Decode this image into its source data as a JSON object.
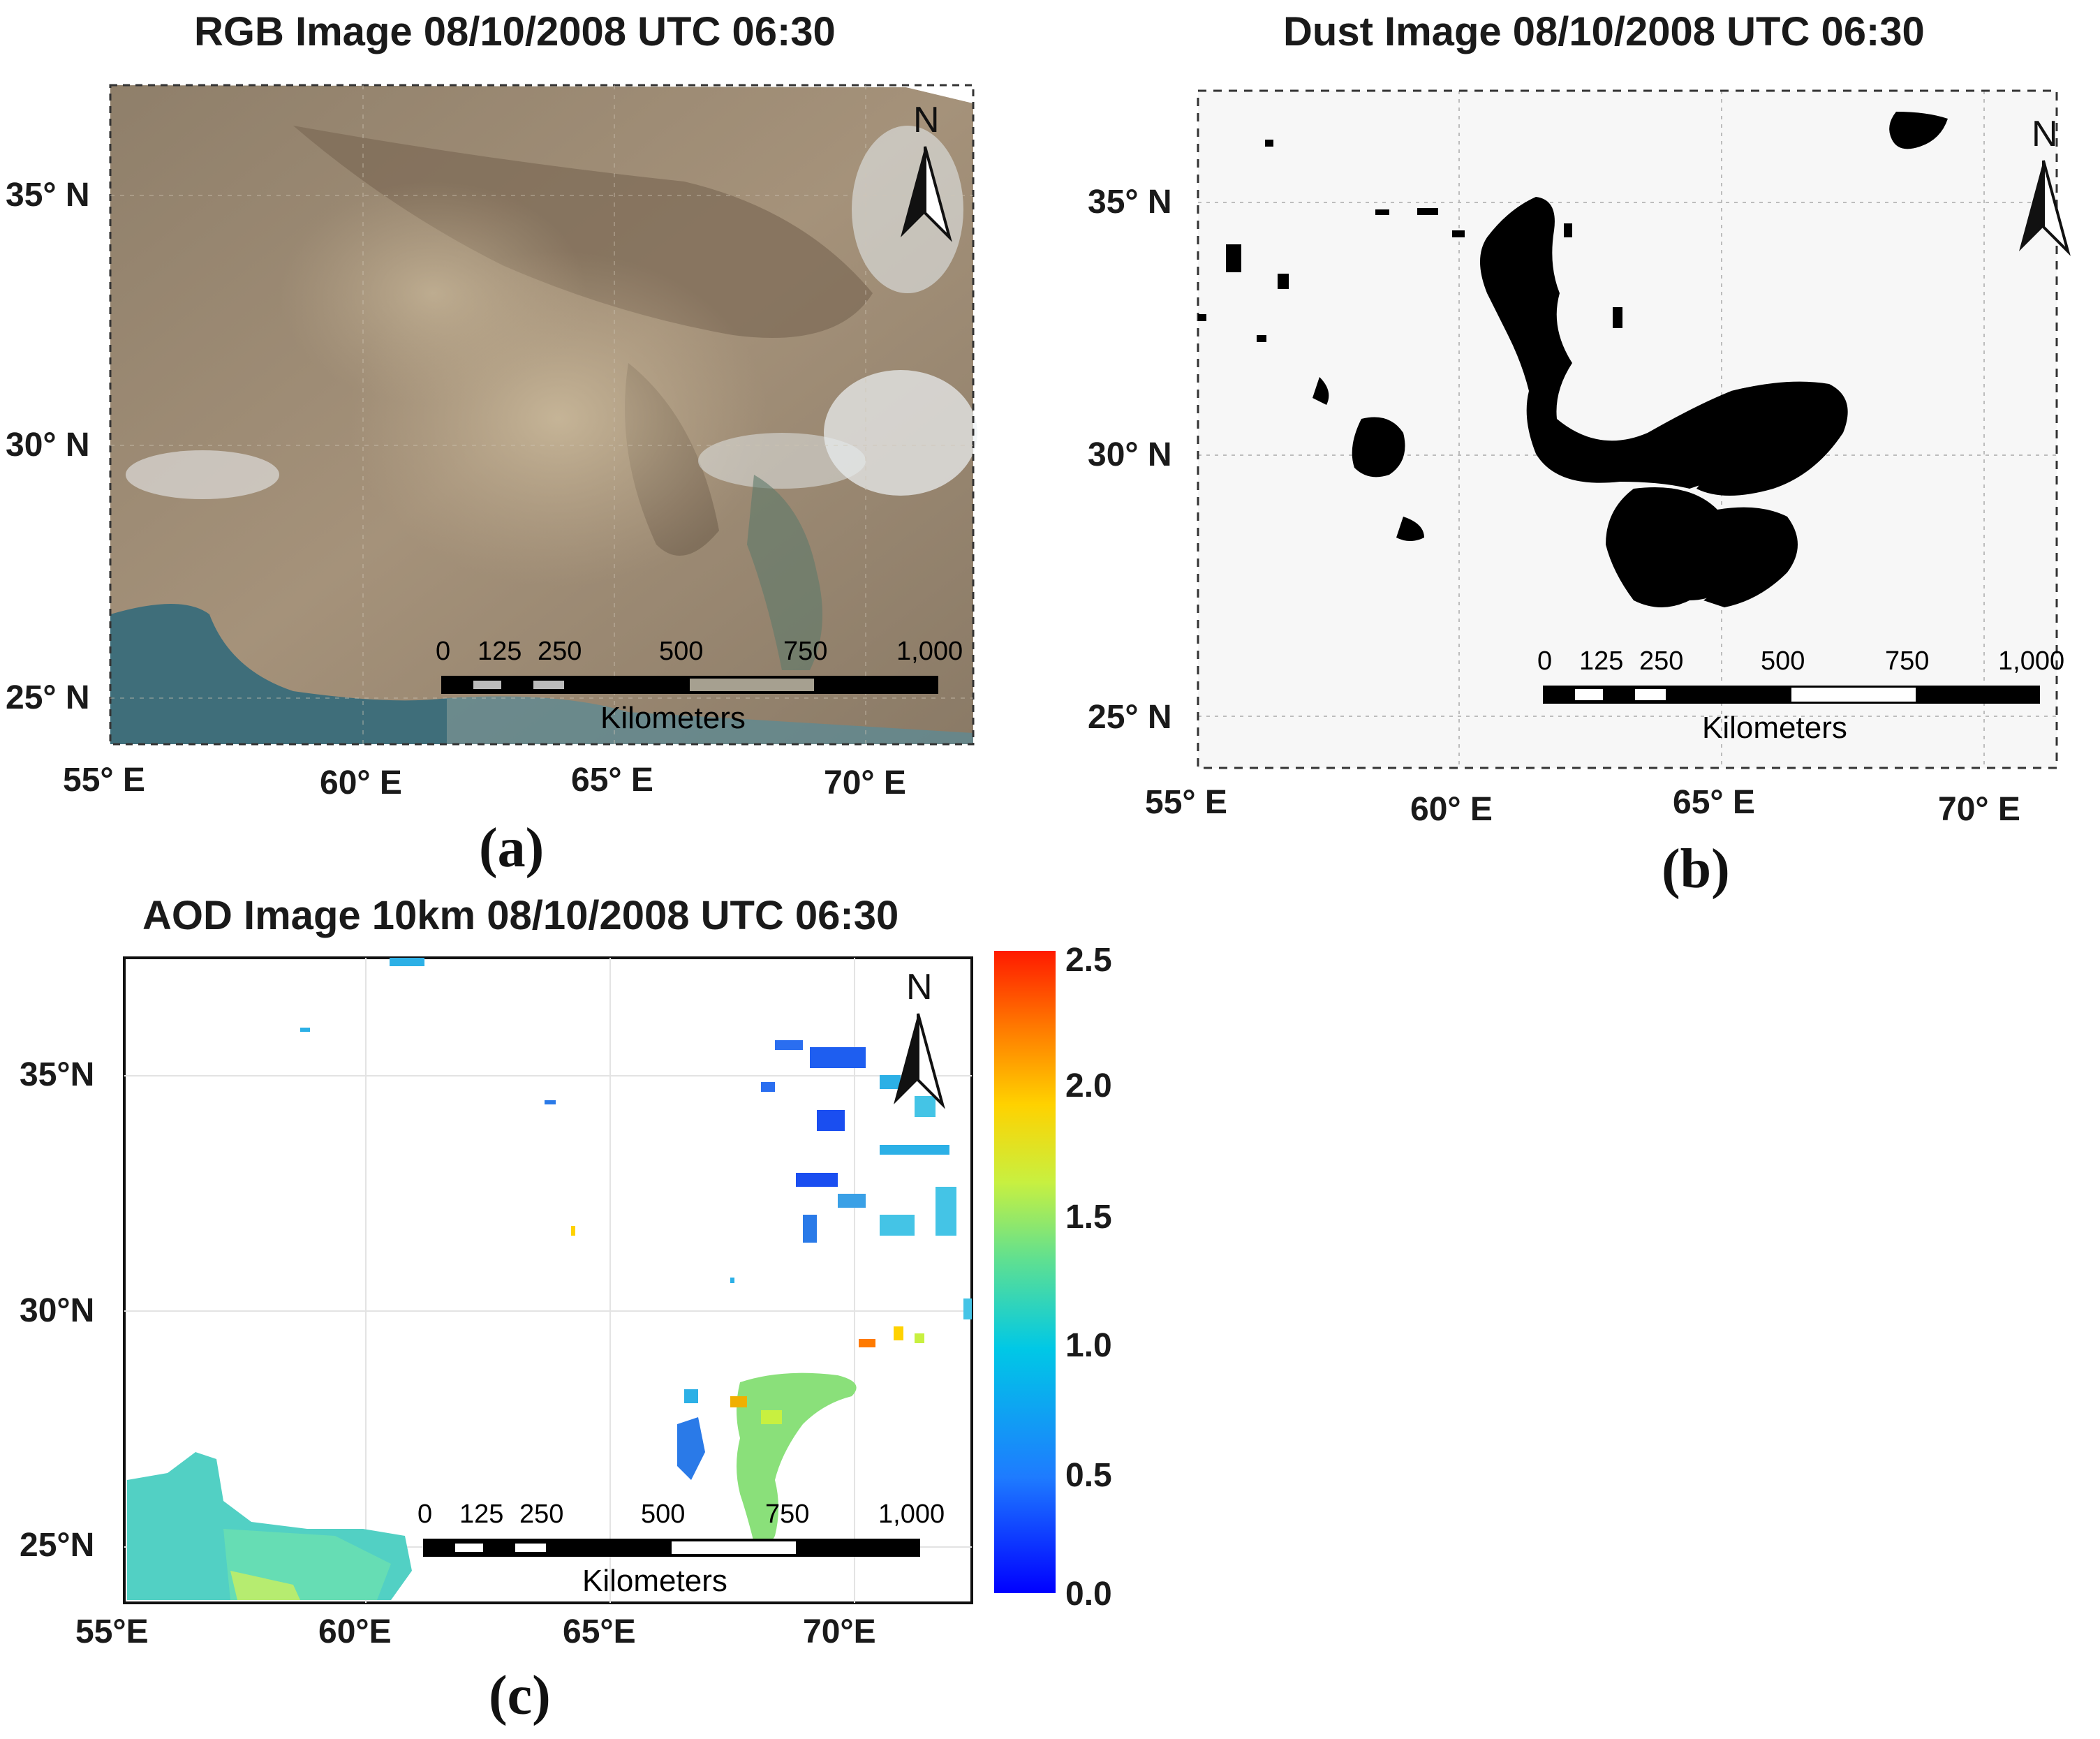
{
  "panels": {
    "a": {
      "title": "RGB Image 08/10/2008 UTC 06:30",
      "label": "(a)",
      "lat_ticks": [
        "35° N",
        "30° N",
        "25° N"
      ],
      "lon_ticks": [
        "55° E",
        "60° E",
        "65° E",
        "70° E"
      ],
      "north": "N",
      "scale_ticks": [
        "0",
        "125",
        "250",
        "500",
        "750",
        "1,000"
      ],
      "scale_unit": "Kilometers"
    },
    "b": {
      "title": "Dust Image 08/10/2008 UTC 06:30",
      "label": "(b)",
      "lat_ticks": [
        "35° N",
        "30° N",
        "25° N"
      ],
      "lon_ticks": [
        "55° E",
        "60° E",
        "65° E",
        "70° E"
      ],
      "north": "N",
      "scale_ticks": [
        "0",
        "125",
        "250",
        "500",
        "750",
        "1,000"
      ],
      "scale_unit": "Kilometers"
    },
    "c": {
      "title": "AOD Image 10km 08/10/2008 UTC 06:30",
      "label": "(c)",
      "lat_ticks": [
        "35°N",
        "30°N",
        "25°N"
      ],
      "lon_ticks": [
        "55°E",
        "60°E",
        "65°E",
        "70°E"
      ],
      "north": "N",
      "scale_ticks": [
        "0",
        "125",
        "250",
        "500",
        "750",
        "1,000"
      ],
      "scale_unit": "Kilometers",
      "colorbar": {
        "ticks": [
          "2.5",
          "2.0",
          "1.5",
          "1.0",
          "0.5",
          "0.0"
        ],
        "range": [
          0.0,
          2.5
        ],
        "colors": [
          "#0000ff",
          "#1e7bff",
          "#00c8e6",
          "#60e090",
          "#c8f040",
          "#ffd200",
          "#ff7a00",
          "#ff1a00"
        ]
      }
    }
  },
  "colors": {
    "rgb_background": "#9a8a75",
    "dust": "#000000",
    "dust_background": "#f6f6f6"
  }
}
